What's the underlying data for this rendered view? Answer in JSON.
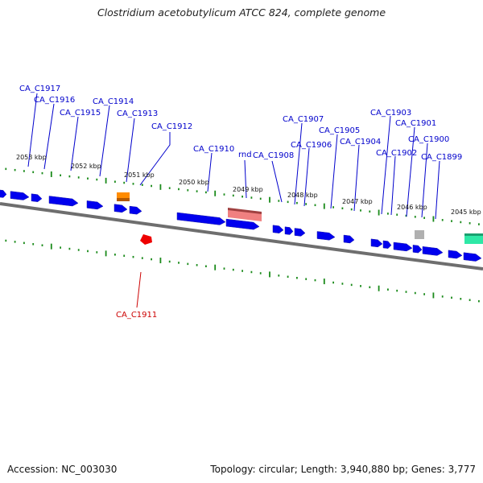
{
  "title": "Clostridium acetobutylicum ATCC 824, complete genome",
  "footer": {
    "accession": "Accession: NC_003030",
    "summary": "Topology: circular; Length: 3,940,880 bp; Genes: 3,777"
  },
  "colors": {
    "background": "#ffffff",
    "backbone": "#6e6e6e",
    "forward_gene": "#0000ee",
    "reverse_gene": "#ee0000",
    "label_forward": "#0000cc",
    "label_reverse": "#cc0000",
    "ruler_ticks": "#1a8a1a",
    "rnd_highlight": "#f08080",
    "orange_feature": "#ff8c00",
    "gray_feature": "#b0b0b0",
    "teal_feature": "#2ee8a6"
  },
  "kbp_ticks": [
    "2053 kbp",
    "2052 kbp",
    "2051 kbp",
    "2050 kbp",
    "2049 kbp",
    "2048 kbp",
    "2047 kbp",
    "2046 kbp",
    "2045 kbp"
  ],
  "gene_labels": {
    "CA_C1917": "CA_C1917",
    "CA_C1916": "CA_C1916",
    "CA_C1915": "CA_C1915",
    "CA_C1914": "CA_C1914",
    "CA_C1913": "CA_C1913",
    "CA_C1912": "CA_C1912",
    "CA_C1910": "CA_C1910",
    "rnd": "rnd",
    "CA_C1908": "CA_C1908",
    "CA_C1907": "CA_C1907",
    "CA_C1906": "CA_C1906",
    "CA_C1905": "CA_C1905",
    "CA_C1904": "CA_C1904",
    "CA_C1903": "CA_C1903",
    "CA_C1902": "CA_C1902",
    "CA_C1901": "CA_C1901",
    "CA_C1900": "CA_C1900",
    "CA_C1899": "CA_C1899",
    "CA_C1911": "CA_C1911"
  }
}
